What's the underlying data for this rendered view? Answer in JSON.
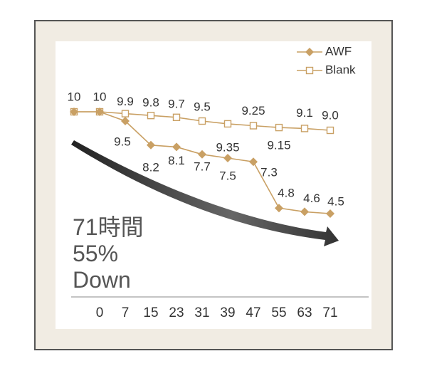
{
  "chart_data": {
    "type": "line",
    "categories": [
      null,
      "0",
      "7",
      "15",
      "23",
      "31",
      "39",
      "47",
      "55",
      "63",
      "71"
    ],
    "series": [
      {
        "name": "AWF",
        "color": "#c9a064",
        "marker": "diamond",
        "values": [
          10,
          10,
          9.5,
          8.2,
          8.1,
          7.7,
          7.5,
          7.3,
          4.8,
          4.6,
          4.5
        ]
      },
      {
        "name": "Blank",
        "color": "#c9a064",
        "marker": "square",
        "values": [
          10,
          10,
          9.9,
          9.8,
          9.7,
          9.5,
          9.35,
          9.25,
          9.15,
          9.1,
          9.0
        ],
        "value_labels": [
          "10",
          "10",
          "9.9",
          "9.8",
          "9.7",
          "9.5",
          "9.35",
          "9.25",
          "9.15",
          "9.1",
          "9.0"
        ]
      }
    ],
    "annotation": [
      "71時間",
      "55%",
      "Down"
    ],
    "legend": "top-right"
  }
}
